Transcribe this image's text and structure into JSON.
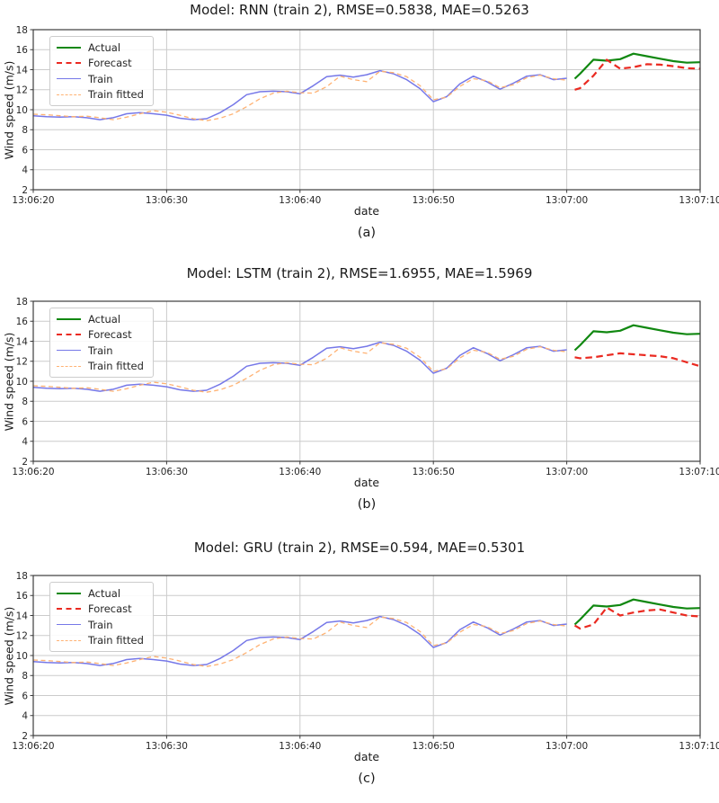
{
  "figure": {
    "ylabel": "Wind speed (m/s)",
    "xlabel": "date"
  },
  "style": {
    "background": "#ffffff",
    "grid_color": "#cbcbcb",
    "spine_color": "#3c3c3c",
    "text_color": "#1a1a1a",
    "tick_label_color": "#262626",
    "actual_color": "#118811",
    "forecast_color": "#ea2a21",
    "train_color": "#7678e8",
    "train_fitted_color": "#ffb273"
  },
  "chart_data": [
    {
      "type": "line",
      "title": "Model: RNN (train 2), RMSE=0.5838, MAE=0.5263",
      "sublabel": "(a)",
      "xlabel": "date",
      "ylabel": "Wind speed (m/s)",
      "ylim": [
        2,
        18
      ],
      "yticks": [
        2,
        4,
        6,
        8,
        10,
        12,
        14,
        16,
        18
      ],
      "xticks_seconds": [
        0,
        10,
        20,
        30,
        40,
        50
      ],
      "xtick_labels": [
        "13:06:20",
        "13:06:30",
        "13:06:40",
        "13:06:50",
        "13:07:00",
        "13:07:10"
      ],
      "grid": true,
      "legend_position": "upper left",
      "series": [
        {
          "name": "Actual",
          "color": "#118811",
          "style": "solid",
          "width": 2.2,
          "x": [
            40.6,
            41,
            42,
            43,
            44,
            45,
            46,
            47,
            48,
            49,
            50
          ],
          "values": [
            13.1,
            13.6,
            15.0,
            14.9,
            15.05,
            15.6,
            15.35,
            15.1,
            14.85,
            14.7,
            14.75
          ]
        },
        {
          "name": "Forecast",
          "color": "#ea2a21",
          "style": "dashed",
          "width": 2.2,
          "x": [
            40.6,
            41,
            42,
            43,
            44,
            45,
            46,
            47,
            48,
            49,
            50
          ],
          "values": [
            12.0,
            12.15,
            13.4,
            15.0,
            14.1,
            14.25,
            14.55,
            14.5,
            14.35,
            14.15,
            14.1
          ]
        },
        {
          "name": "Train",
          "color": "#7678e8",
          "style": "solid",
          "width": 1.5,
          "x_start": 0,
          "x_step": 1,
          "values": [
            9.4,
            9.3,
            9.25,
            9.3,
            9.2,
            9.0,
            9.2,
            9.6,
            9.7,
            9.6,
            9.45,
            9.15,
            9.0,
            9.1,
            9.7,
            10.5,
            11.5,
            11.8,
            11.85,
            11.8,
            11.6,
            12.4,
            13.3,
            13.45,
            13.25,
            13.5,
            13.9,
            13.6,
            13.0,
            12.1,
            10.8,
            11.3,
            12.6,
            13.35,
            12.8,
            12.05,
            12.65,
            13.35,
            13.5,
            13.0,
            13.15
          ]
        },
        {
          "name": "Train fitted",
          "color": "#ffb273",
          "style": "dashed",
          "width": 1.3,
          "x_start": 0,
          "x_step": 1,
          "values": [
            9.55,
            9.5,
            9.4,
            9.3,
            9.35,
            9.2,
            9.0,
            9.25,
            9.6,
            9.9,
            9.75,
            9.45,
            9.1,
            8.9,
            9.15,
            9.6,
            10.3,
            11.1,
            11.65,
            11.85,
            11.7,
            11.65,
            12.3,
            13.35,
            13.0,
            12.8,
            13.85,
            13.7,
            13.3,
            12.4,
            11.0,
            11.25,
            12.35,
            13.1,
            12.9,
            12.2,
            12.5,
            13.2,
            13.45,
            13.1,
            12.95
          ]
        }
      ]
    },
    {
      "type": "line",
      "title": "Model: LSTM (train 2), RMSE=1.6955, MAE=1.5969",
      "sublabel": "(b)",
      "xlabel": "date",
      "ylabel": "Wind speed (m/s)",
      "ylim": [
        2,
        18
      ],
      "yticks": [
        2,
        4,
        6,
        8,
        10,
        12,
        14,
        16,
        18
      ],
      "xticks_seconds": [
        0,
        10,
        20,
        30,
        40,
        50
      ],
      "xtick_labels": [
        "13:06:20",
        "13:06:30",
        "13:06:40",
        "13:06:50",
        "13:07:00",
        "13:07:10"
      ],
      "grid": true,
      "legend_position": "upper left",
      "series": [
        {
          "name": "Actual",
          "color": "#118811",
          "style": "solid",
          "width": 2.2,
          "x": [
            40.6,
            41,
            42,
            43,
            44,
            45,
            46,
            47,
            48,
            49,
            50
          ],
          "values": [
            13.1,
            13.6,
            15.0,
            14.9,
            15.05,
            15.6,
            15.35,
            15.1,
            14.85,
            14.7,
            14.75
          ]
        },
        {
          "name": "Forecast",
          "color": "#ea2a21",
          "style": "dashed",
          "width": 2.2,
          "x": [
            40.6,
            41,
            42,
            43,
            44,
            45,
            46,
            47,
            48,
            49,
            50
          ],
          "values": [
            12.4,
            12.3,
            12.4,
            12.6,
            12.8,
            12.7,
            12.6,
            12.5,
            12.3,
            11.9,
            11.5
          ]
        },
        {
          "name": "Train",
          "color": "#7678e8",
          "style": "solid",
          "width": 1.5,
          "x_start": 0,
          "x_step": 1,
          "values": [
            9.4,
            9.3,
            9.25,
            9.3,
            9.2,
            9.0,
            9.2,
            9.6,
            9.7,
            9.6,
            9.45,
            9.15,
            9.0,
            9.1,
            9.7,
            10.5,
            11.5,
            11.8,
            11.85,
            11.8,
            11.6,
            12.4,
            13.3,
            13.45,
            13.25,
            13.5,
            13.9,
            13.6,
            13.0,
            12.1,
            10.8,
            11.3,
            12.6,
            13.35,
            12.8,
            12.05,
            12.65,
            13.35,
            13.5,
            13.0,
            13.15
          ]
        },
        {
          "name": "Train fitted",
          "color": "#ffb273",
          "style": "dashed",
          "width": 1.3,
          "x_start": 0,
          "x_step": 1,
          "values": [
            9.55,
            9.5,
            9.4,
            9.3,
            9.35,
            9.2,
            9.0,
            9.25,
            9.6,
            9.9,
            9.75,
            9.45,
            9.1,
            8.9,
            9.15,
            9.6,
            10.3,
            11.1,
            11.65,
            11.85,
            11.7,
            11.65,
            12.3,
            13.35,
            13.0,
            12.8,
            13.85,
            13.7,
            13.3,
            12.4,
            11.0,
            11.25,
            12.35,
            13.1,
            12.9,
            12.2,
            12.5,
            13.2,
            13.45,
            13.1,
            12.95
          ]
        }
      ]
    },
    {
      "type": "line",
      "title": "Model: GRU (train 2), RMSE=0.594, MAE=0.5301",
      "sublabel": "(c)",
      "xlabel": "date",
      "ylabel": "Wind speed (m/s)",
      "ylim": [
        2,
        18
      ],
      "yticks": [
        2,
        4,
        6,
        8,
        10,
        12,
        14,
        16,
        18
      ],
      "xticks_seconds": [
        0,
        10,
        20,
        30,
        40,
        50
      ],
      "xtick_labels": [
        "13:06:20",
        "13:06:30",
        "13:06:40",
        "13:06:50",
        "13:07:00",
        "13:07:10"
      ],
      "grid": true,
      "legend_position": "upper left",
      "series": [
        {
          "name": "Actual",
          "color": "#118811",
          "style": "solid",
          "width": 2.2,
          "x": [
            40.6,
            41,
            42,
            43,
            44,
            45,
            46,
            47,
            48,
            49,
            50
          ],
          "values": [
            13.1,
            13.6,
            15.0,
            14.9,
            15.05,
            15.6,
            15.35,
            15.1,
            14.85,
            14.7,
            14.75
          ]
        },
        {
          "name": "Forecast",
          "color": "#ea2a21",
          "style": "dashed",
          "width": 2.2,
          "x": [
            40.6,
            41,
            42,
            43,
            44,
            45,
            46,
            47,
            48,
            49,
            50
          ],
          "values": [
            13.0,
            12.7,
            13.1,
            14.8,
            14.0,
            14.3,
            14.5,
            14.6,
            14.3,
            14.0,
            13.9
          ]
        },
        {
          "name": "Train",
          "color": "#7678e8",
          "style": "solid",
          "width": 1.5,
          "x_start": 0,
          "x_step": 1,
          "values": [
            9.4,
            9.3,
            9.25,
            9.3,
            9.2,
            9.0,
            9.2,
            9.6,
            9.7,
            9.6,
            9.45,
            9.15,
            9.0,
            9.1,
            9.7,
            10.5,
            11.5,
            11.8,
            11.85,
            11.8,
            11.6,
            12.4,
            13.3,
            13.45,
            13.25,
            13.5,
            13.9,
            13.6,
            13.0,
            12.1,
            10.8,
            11.3,
            12.6,
            13.35,
            12.8,
            12.05,
            12.65,
            13.35,
            13.5,
            13.0,
            13.15
          ]
        },
        {
          "name": "Train fitted",
          "color": "#ffb273",
          "style": "dashed",
          "width": 1.3,
          "x_start": 0,
          "x_step": 1,
          "values": [
            9.55,
            9.5,
            9.4,
            9.3,
            9.35,
            9.2,
            9.0,
            9.25,
            9.6,
            9.9,
            9.75,
            9.45,
            9.1,
            8.9,
            9.15,
            9.6,
            10.3,
            11.1,
            11.65,
            11.85,
            11.7,
            11.65,
            12.3,
            13.35,
            13.0,
            12.8,
            13.85,
            13.7,
            13.3,
            12.4,
            11.0,
            11.25,
            12.35,
            13.1,
            12.9,
            12.2,
            12.5,
            13.2,
            13.45,
            13.1,
            12.95
          ]
        }
      ]
    }
  ]
}
